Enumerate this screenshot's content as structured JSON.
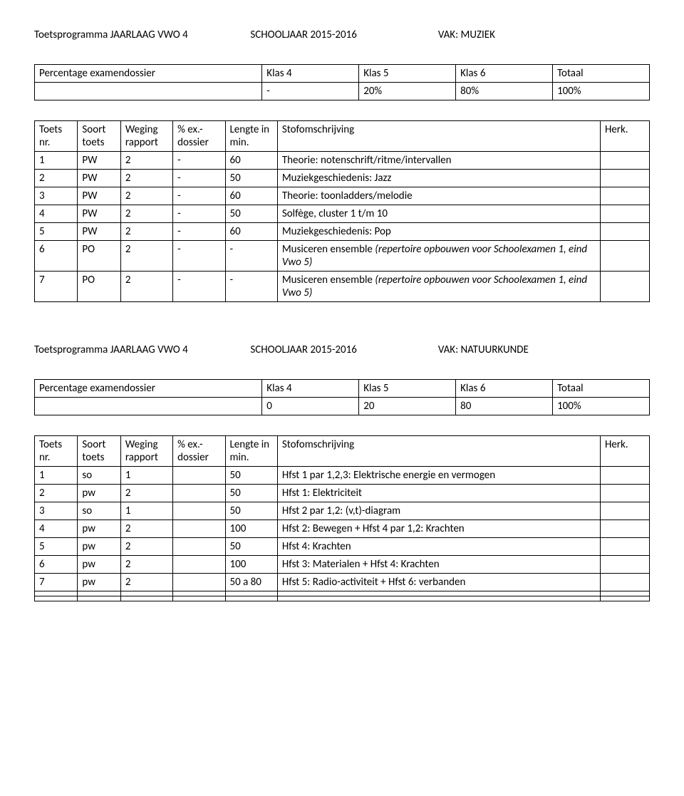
{
  "section1": {
    "header": {
      "program": "Toetsprogramma JAARLAAG VWO 4",
      "schoolyear": "SCHOOLJAAR 2015-2016",
      "vak": "VAK: MUZIEK"
    },
    "perc_table": {
      "label": "Percentage examendossier",
      "cols": [
        "Klas 4",
        "Klas 5",
        "Klas 6",
        "Totaal"
      ],
      "vals": [
        "-",
        "20%",
        "80%",
        "100%"
      ]
    },
    "main_table": {
      "head": [
        "Toets nr.",
        "Soort toets",
        "Weging rapport",
        "% ex.-dossier",
        "Lengte in min.",
        "Stofomschrijving",
        "Herk."
      ],
      "rows": [
        {
          "c": [
            "1",
            "PW",
            "2",
            "-",
            "60",
            "Theorie: notenschrift/ritme/intervallen",
            ""
          ]
        },
        {
          "c": [
            "2",
            "PW",
            "2",
            "-",
            "50",
            "Muziekgeschiedenis: Jazz",
            ""
          ]
        },
        {
          "c": [
            "3",
            "PW",
            "2",
            "-",
            "60",
            "Theorie: toonladders/melodie",
            ""
          ]
        },
        {
          "c": [
            "4",
            "PW",
            "2",
            "-",
            "50",
            "Solfège, cluster 1 t/m 10",
            ""
          ]
        },
        {
          "c": [
            "5",
            "PW",
            "2",
            "-",
            "60",
            "Muziekgeschiedenis: Pop",
            ""
          ]
        },
        {
          "c": [
            "6",
            "PO",
            "2",
            "-",
            "-",
            ""
          ],
          "desc_plain": "Musiceren ensemble ",
          "desc_italic": "(repertoire opbouwen voor Schoolexamen 1, eind Vwo 5)"
        },
        {
          "c": [
            "7",
            "PO",
            "2",
            "-",
            "-",
            ""
          ],
          "desc_plain": "Musiceren ensemble ",
          "desc_italic": "(repertoire opbouwen voor Schoolexamen 1, eind Vwo 5)"
        }
      ]
    }
  },
  "section2": {
    "header": {
      "program": "Toetsprogramma JAARLAAG VWO 4",
      "schoolyear": "SCHOOLJAAR 2015-2016",
      "vak": "VAK: NATUURKUNDE"
    },
    "perc_table": {
      "label": "Percentage examendossier",
      "cols": [
        "Klas 4",
        "Klas 5",
        "Klas 6",
        "Totaal"
      ],
      "vals": [
        "0",
        "20",
        "80",
        "100%"
      ]
    },
    "main_table": {
      "head": [
        "Toets nr.",
        "Soort toets",
        "Weging rapport",
        "% ex.-dossier",
        "Lengte in min.",
        "Stofomschrijving",
        "Herk."
      ],
      "rows": [
        {
          "c": [
            "1",
            "so",
            "1",
            "",
            "50",
            "Hfst 1 par 1,2,3: Elektrische energie en vermogen",
            ""
          ]
        },
        {
          "c": [
            "2",
            "pw",
            "2",
            "",
            "50",
            "Hfst 1: Elektriciteit",
            ""
          ]
        },
        {
          "c": [
            "3",
            "so",
            "1",
            "",
            "50",
            "Hfst 2 par 1,2: (v,t)-diagram",
            ""
          ]
        },
        {
          "c": [
            "4",
            "pw",
            "2",
            "",
            "100",
            "Hfst 2: Bewegen + Hfst 4 par 1,2: Krachten",
            ""
          ]
        },
        {
          "c": [
            "5",
            "pw",
            "2",
            "",
            "50",
            "Hfst 4: Krachten",
            ""
          ]
        },
        {
          "c": [
            "6",
            "pw",
            "2",
            "",
            "100",
            "Hfst 3: Materialen + Hfst 4: Krachten",
            ""
          ]
        },
        {
          "c": [
            "7",
            "pw",
            "2",
            "",
            "50 a 80",
            "Hfst 5: Radio-activiteit + Hfst 6: verbanden",
            ""
          ]
        },
        {
          "c": [
            "",
            "",
            "",
            "",
            "",
            "",
            ""
          ]
        },
        {
          "c": [
            "",
            "",
            "",
            "",
            "",
            "",
            ""
          ]
        }
      ]
    }
  }
}
